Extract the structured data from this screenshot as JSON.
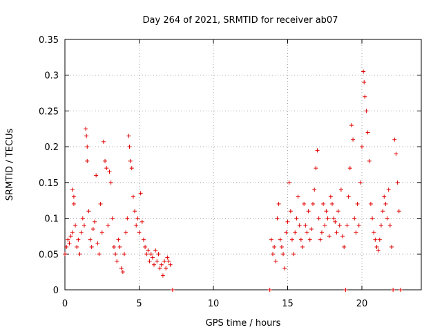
{
  "chart_data": {
    "type": "scatter",
    "title": "Day 264 of 2021, SRMTID for receiver ab07",
    "xlabel": "GPS time / hours",
    "ylabel": "SRMTID / TECUs",
    "xlim": [
      0,
      24
    ],
    "ylim": [
      0,
      0.35
    ],
    "xticks": [
      0,
      5,
      10,
      15,
      20
    ],
    "xtick_labels": [
      "0",
      "5",
      "10",
      "15",
      "20"
    ],
    "yticks": [
      0,
      0.05,
      0.1,
      0.15,
      0.2,
      0.25,
      0.3,
      0.35
    ],
    "ytick_labels": [
      "0",
      "0.05",
      "0.1",
      "0.15",
      "0.2",
      "0.25",
      "0.3",
      "0.35"
    ],
    "grid": true,
    "marker": "+",
    "color": "#e00000",
    "series": [
      {
        "name": "SRMTID",
        "points": [
          [
            0.0,
            0.05
          ],
          [
            0.1,
            0.06
          ],
          [
            0.2,
            0.07
          ],
          [
            0.3,
            0.065
          ],
          [
            0.4,
            0.075
          ],
          [
            0.5,
            0.08
          ],
          [
            0.5,
            0.14
          ],
          [
            0.6,
            0.13
          ],
          [
            0.6,
            0.12
          ],
          [
            0.7,
            0.09
          ],
          [
            0.8,
            0.06
          ],
          [
            0.9,
            0.07
          ],
          [
            1.0,
            0.05
          ],
          [
            1.1,
            0.08
          ],
          [
            1.2,
            0.1
          ],
          [
            1.3,
            0.09
          ],
          [
            1.4,
            0.225
          ],
          [
            1.45,
            0.215
          ],
          [
            1.5,
            0.2
          ],
          [
            1.5,
            0.18
          ],
          [
            1.6,
            0.11
          ],
          [
            1.7,
            0.07
          ],
          [
            1.8,
            0.06
          ],
          [
            1.9,
            0.085
          ],
          [
            2.0,
            0.095
          ],
          [
            2.1,
            0.16
          ],
          [
            2.2,
            0.065
          ],
          [
            2.3,
            0.05
          ],
          [
            2.4,
            0.12
          ],
          [
            2.5,
            0.08
          ],
          [
            2.6,
            0.207
          ],
          [
            2.7,
            0.18
          ],
          [
            2.8,
            0.17
          ],
          [
            2.9,
            0.09
          ],
          [
            3.0,
            0.165
          ],
          [
            3.1,
            0.15
          ],
          [
            3.2,
            0.1
          ],
          [
            3.3,
            0.06
          ],
          [
            3.4,
            0.05
          ],
          [
            3.5,
            0.04
          ],
          [
            3.6,
            0.07
          ],
          [
            3.7,
            0.06
          ],
          [
            3.8,
            0.03
          ],
          [
            3.9,
            0.025
          ],
          [
            4.0,
            0.05
          ],
          [
            4.1,
            0.08
          ],
          [
            4.2,
            0.1
          ],
          [
            4.3,
            0.215
          ],
          [
            4.35,
            0.2
          ],
          [
            4.4,
            0.18
          ],
          [
            4.5,
            0.17
          ],
          [
            4.6,
            0.13
          ],
          [
            4.7,
            0.11
          ],
          [
            4.8,
            0.09
          ],
          [
            4.9,
            0.1
          ],
          [
            5.0,
            0.08
          ],
          [
            5.1,
            0.135
          ],
          [
            5.2,
            0.095
          ],
          [
            5.3,
            0.07
          ],
          [
            5.4,
            0.06
          ],
          [
            5.5,
            0.05
          ],
          [
            5.6,
            0.055
          ],
          [
            5.7,
            0.04
          ],
          [
            5.8,
            0.05
          ],
          [
            5.9,
            0.045
          ],
          [
            6.0,
            0.035
          ],
          [
            6.1,
            0.055
          ],
          [
            6.2,
            0.04
          ],
          [
            6.3,
            0.05
          ],
          [
            6.4,
            0.03
          ],
          [
            6.5,
            0.035
          ],
          [
            6.6,
            0.02
          ],
          [
            6.7,
            0.04
          ],
          [
            6.8,
            0.03
          ],
          [
            6.9,
            0.045
          ],
          [
            7.0,
            0.04
          ],
          [
            7.1,
            0.035
          ],
          [
            7.25,
            0.0
          ],
          [
            13.8,
            0.0
          ],
          [
            13.9,
            0.07
          ],
          [
            14.0,
            0.05
          ],
          [
            14.1,
            0.06
          ],
          [
            14.2,
            0.04
          ],
          [
            14.3,
            0.1
          ],
          [
            14.4,
            0.12
          ],
          [
            14.5,
            0.07
          ],
          [
            14.6,
            0.06
          ],
          [
            14.7,
            0.05
          ],
          [
            14.8,
            0.03
          ],
          [
            14.9,
            0.08
          ],
          [
            15.0,
            0.095
          ],
          [
            15.1,
            0.15
          ],
          [
            15.2,
            0.11
          ],
          [
            15.3,
            0.07
          ],
          [
            15.4,
            0.05
          ],
          [
            15.5,
            0.08
          ],
          [
            15.6,
            0.1
          ],
          [
            15.7,
            0.13
          ],
          [
            15.8,
            0.09
          ],
          [
            15.9,
            0.07
          ],
          [
            16.0,
            0.06
          ],
          [
            16.1,
            0.12
          ],
          [
            16.2,
            0.09
          ],
          [
            16.3,
            0.08
          ],
          [
            16.4,
            0.11
          ],
          [
            16.5,
            0.07
          ],
          [
            16.6,
            0.085
          ],
          [
            16.7,
            0.12
          ],
          [
            16.8,
            0.14
          ],
          [
            16.9,
            0.17
          ],
          [
            17.0,
            0.195
          ],
          [
            17.1,
            0.1
          ],
          [
            17.2,
            0.07
          ],
          [
            17.3,
            0.08
          ],
          [
            17.4,
            0.12
          ],
          [
            17.5,
            0.09
          ],
          [
            17.6,
            0.11
          ],
          [
            17.7,
            0.1
          ],
          [
            17.8,
            0.075
          ],
          [
            17.9,
            0.13
          ],
          [
            18.0,
            0.12
          ],
          [
            18.1,
            0.1
          ],
          [
            18.2,
            0.095
          ],
          [
            18.3,
            0.08
          ],
          [
            18.4,
            0.11
          ],
          [
            18.5,
            0.09
          ],
          [
            18.6,
            0.14
          ],
          [
            18.7,
            0.075
          ],
          [
            18.8,
            0.06
          ],
          [
            18.9,
            0.0
          ],
          [
            19.0,
            0.09
          ],
          [
            19.1,
            0.13
          ],
          [
            19.2,
            0.17
          ],
          [
            19.3,
            0.23
          ],
          [
            19.4,
            0.21
          ],
          [
            19.5,
            0.1
          ],
          [
            19.6,
            0.08
          ],
          [
            19.7,
            0.12
          ],
          [
            19.8,
            0.09
          ],
          [
            19.9,
            0.15
          ],
          [
            20.0,
            0.2
          ],
          [
            20.1,
            0.305
          ],
          [
            20.15,
            0.29
          ],
          [
            20.2,
            0.27
          ],
          [
            20.3,
            0.25
          ],
          [
            20.4,
            0.22
          ],
          [
            20.5,
            0.18
          ],
          [
            20.6,
            0.12
          ],
          [
            20.7,
            0.1
          ],
          [
            20.8,
            0.08
          ],
          [
            20.9,
            0.07
          ],
          [
            21.0,
            0.06
          ],
          [
            21.1,
            0.055
          ],
          [
            21.2,
            0.07
          ],
          [
            21.3,
            0.09
          ],
          [
            21.4,
            0.11
          ],
          [
            21.5,
            0.13
          ],
          [
            21.6,
            0.12
          ],
          [
            21.7,
            0.1
          ],
          [
            21.8,
            0.14
          ],
          [
            21.9,
            0.09
          ],
          [
            22.0,
            0.06
          ],
          [
            22.1,
            0.0
          ],
          [
            22.2,
            0.21
          ],
          [
            22.3,
            0.19
          ],
          [
            22.4,
            0.15
          ],
          [
            22.5,
            0.11
          ],
          [
            22.6,
            0.0
          ]
        ]
      }
    ]
  }
}
